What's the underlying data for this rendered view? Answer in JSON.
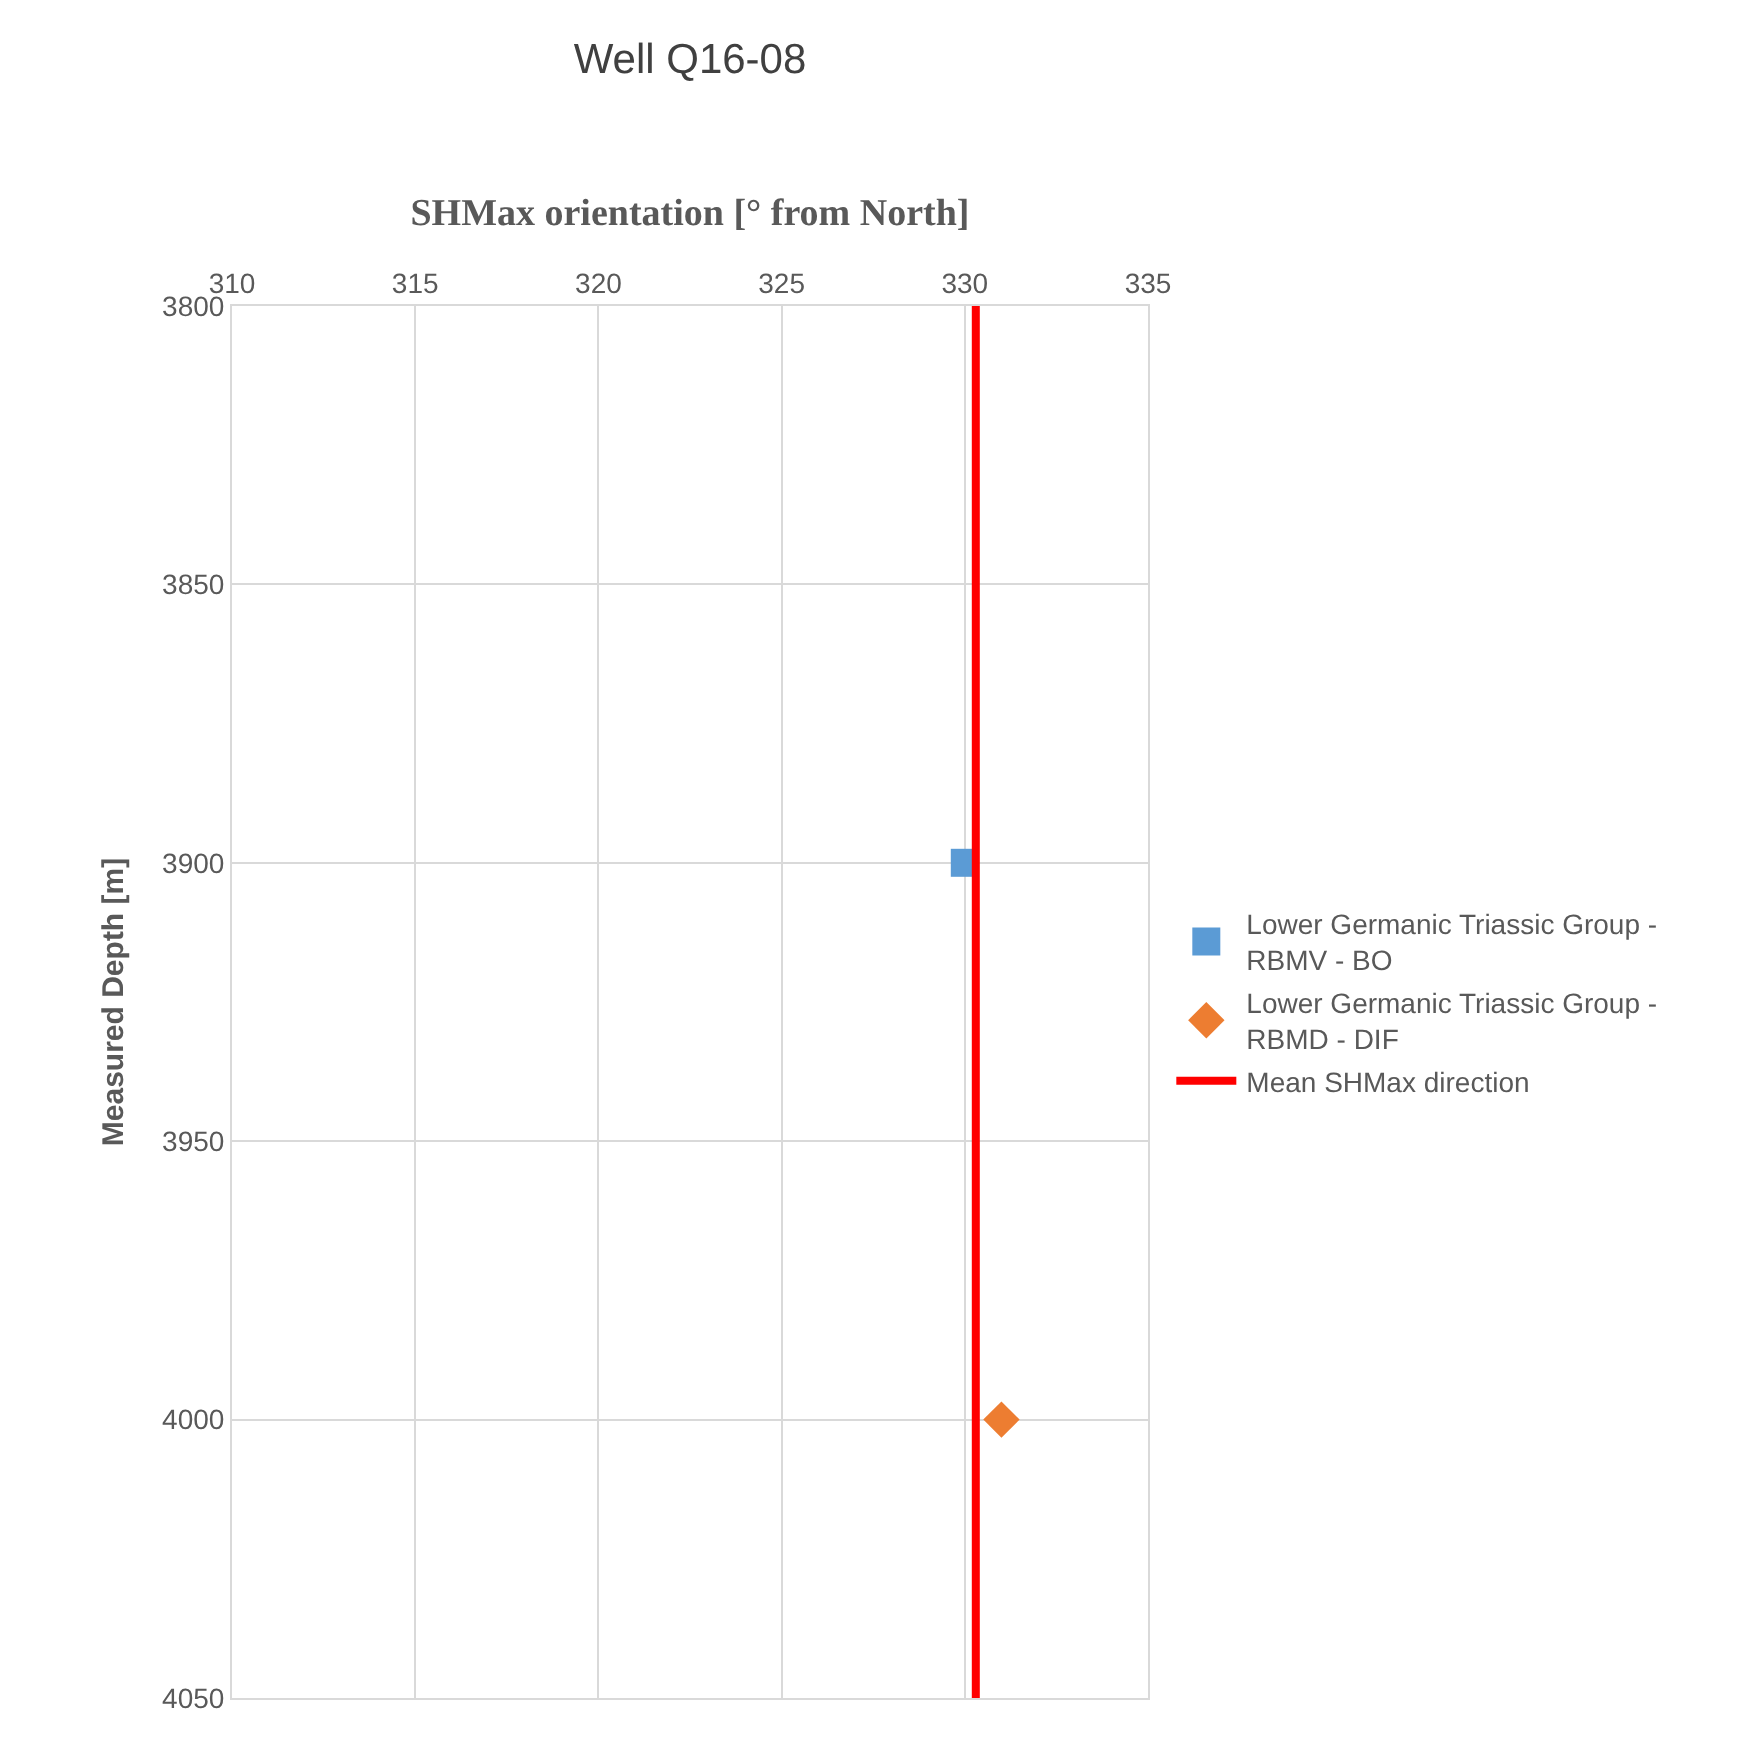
{
  "chart_data": {
    "type": "scatter",
    "title": "Well Q16-08",
    "xlabel": "SHMax orientation [° from North]",
    "ylabel": "Measured Depth [m]",
    "xlim": [
      310,
      335
    ],
    "xticks": [
      310,
      315,
      320,
      325,
      330,
      335
    ],
    "ylim": [
      4050,
      3800
    ],
    "yticks": [
      3800,
      3850,
      3900,
      3950,
      4000,
      4050
    ],
    "grid": true,
    "legend": "right",
    "series": [
      {
        "name": "Lower Germanic Triassic Group - RBMV - BO",
        "color": "#5b9bd5",
        "marker": "square",
        "x": [
          330.0
        ],
        "values": [
          3900
        ]
      },
      {
        "name": "Lower Germanic Triassic Group - RBMD - DIF",
        "color": "#ed7d31",
        "marker": "diamond",
        "x": [
          331.0
        ],
        "values": [
          4000
        ]
      },
      {
        "name": "Mean SHMax direction",
        "type": "line",
        "color": "#ff0000",
        "marker": "none",
        "line_style": "solid",
        "x": [
          330.3,
          330.3
        ],
        "values": [
          3800,
          4050
        ]
      }
    ]
  }
}
